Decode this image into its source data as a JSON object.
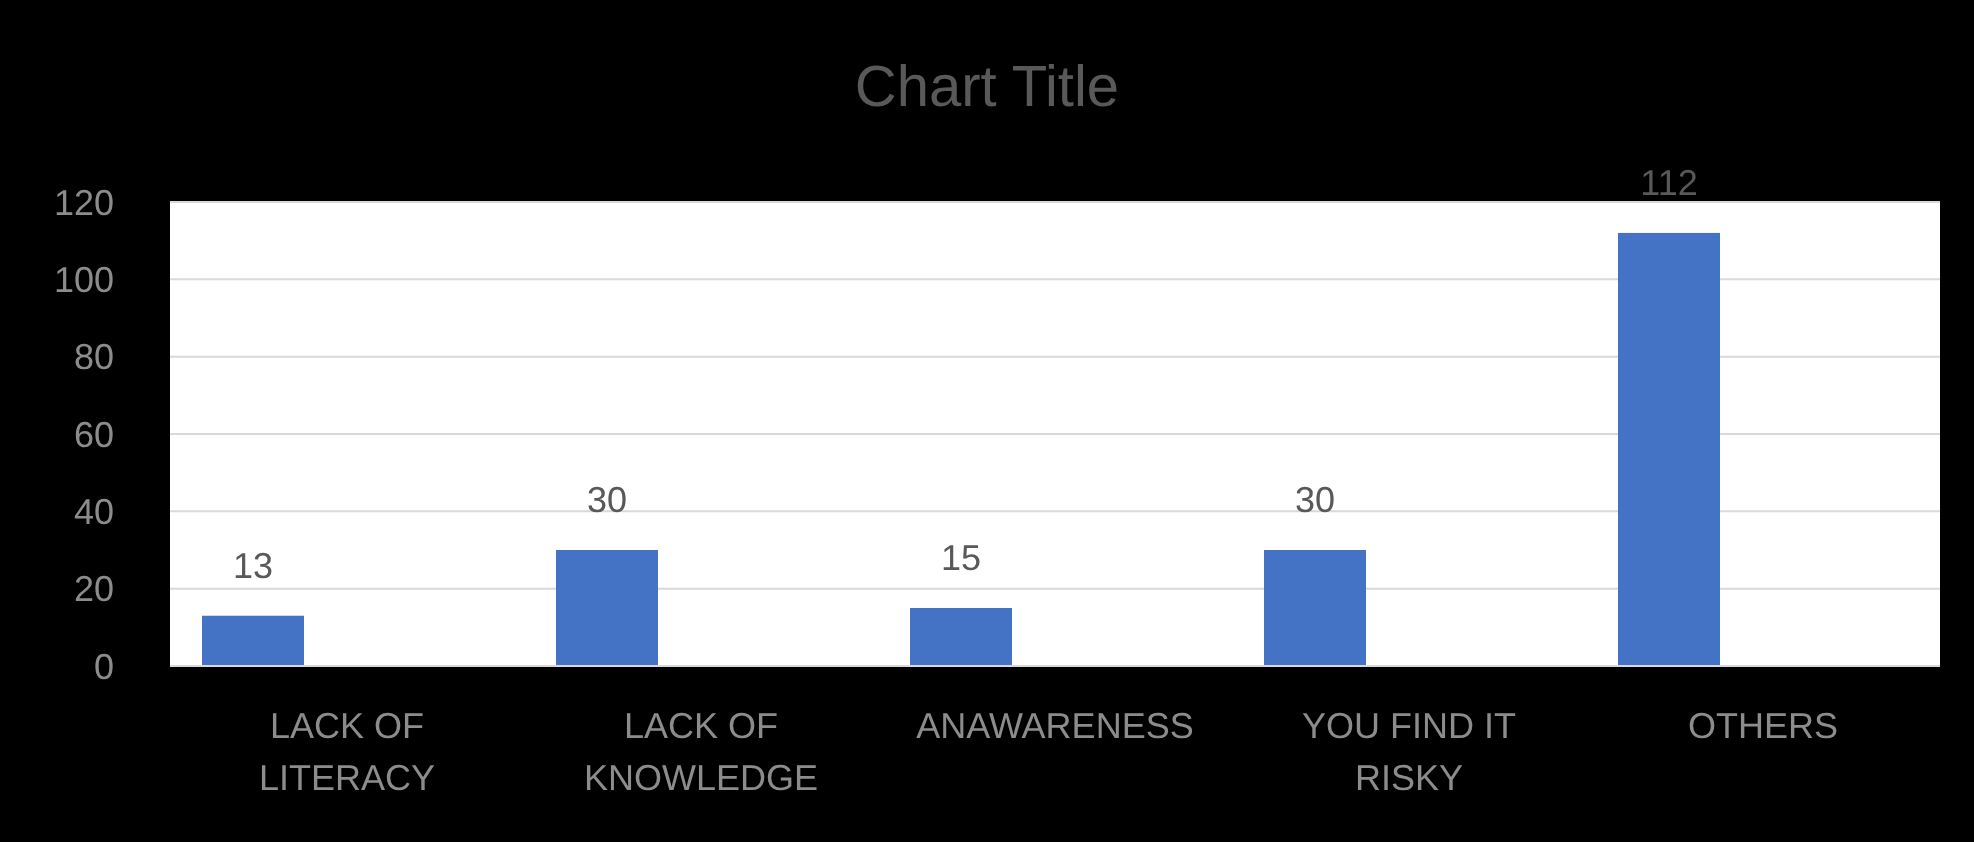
{
  "chart_data": {
    "type": "bar",
    "title": "Chart Title",
    "categories": [
      "LACK OF LITERACY",
      "LACK OF KNOWLEDGE",
      "ANAWARENESS",
      "YOU FIND IT RISKY",
      "OTHERS"
    ],
    "values": [
      13,
      30,
      15,
      30,
      112
    ],
    "color": "#4472c4",
    "ylim": [
      0,
      120
    ],
    "yticks": [
      0,
      20,
      40,
      60,
      80,
      100,
      120
    ],
    "grid": "y",
    "data_labels": true
  }
}
